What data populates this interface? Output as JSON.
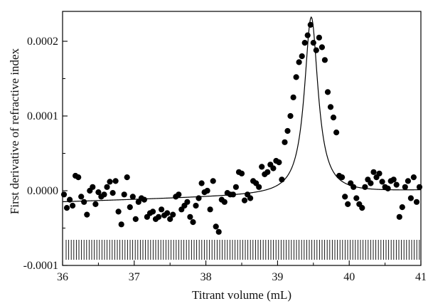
{
  "chart_data": {
    "type": "scatter",
    "title": "",
    "xlabel": "Titrant volume  (mL)",
    "ylabel": "First derivative of refractive index",
    "xlim": [
      36,
      41
    ],
    "ylim": [
      -0.0001,
      0.00024
    ],
    "xticks": [
      36,
      37,
      38,
      39,
      40,
      41
    ],
    "xtick_labels": [
      "36",
      "37",
      "38",
      "39",
      "40",
      "41"
    ],
    "yticks": [
      -0.0001,
      0.0,
      0.0001,
      0.0002
    ],
    "ytick_labels": [
      "-0.0001",
      "0.0000",
      "0.0001",
      "0.0002"
    ],
    "grid": false,
    "legend": "none",
    "marker_color": "#000000",
    "line_color": "#000000",
    "series": [
      {
        "kind": "points",
        "x": [
          36.02,
          36.06,
          36.1,
          36.14,
          36.18,
          36.22,
          36.26,
          36.3,
          36.34,
          36.38,
          36.42,
          36.46,
          36.5,
          36.54,
          36.58,
          36.62,
          36.66,
          36.7,
          36.74,
          36.78,
          36.82,
          36.86,
          36.9,
          36.94,
          36.98,
          37.02,
          37.06,
          37.1,
          37.14,
          37.18,
          37.22,
          37.26,
          37.3,
          37.34,
          37.38,
          37.42,
          37.46,
          37.5,
          37.54,
          37.58,
          37.62,
          37.66,
          37.7,
          37.74,
          37.78,
          37.82,
          37.86,
          37.9,
          37.94,
          37.98,
          38.02,
          38.06,
          38.1,
          38.14,
          38.18,
          38.22,
          38.26,
          38.3,
          38.34,
          38.38,
          38.42,
          38.46,
          38.5,
          38.54,
          38.58,
          38.62,
          38.66,
          38.7,
          38.74,
          38.78,
          38.82,
          38.86,
          38.9,
          38.94,
          38.98,
          39.02,
          39.06,
          39.1,
          39.14,
          39.18,
          39.22,
          39.26,
          39.3,
          39.34,
          39.38,
          39.42,
          39.46,
          39.5,
          39.54,
          39.58,
          39.62,
          39.66,
          39.7,
          39.74,
          39.78,
          39.82,
          39.86,
          39.9,
          39.94,
          39.98,
          40.02,
          40.06,
          40.1,
          40.14,
          40.18,
          40.22,
          40.26,
          40.3,
          40.34,
          40.38,
          40.42,
          40.46,
          40.5,
          40.54,
          40.58,
          40.62,
          40.66,
          40.7,
          40.74,
          40.78,
          40.82,
          40.86,
          40.9,
          40.94,
          40.98
        ],
        "y": [
          -5e-06,
          -2.3e-05,
          -1.2e-05,
          -2e-05,
          2e-05,
          1.8e-05,
          -8e-06,
          -1.5e-05,
          -3.2e-05,
          0.0,
          5e-06,
          -1.8e-05,
          -2e-06,
          -8e-06,
          -5e-06,
          5e-06,
          1.2e-05,
          -3e-06,
          1.3e-05,
          -2.8e-05,
          -4.5e-05,
          -5e-06,
          1.8e-05,
          -2.2e-05,
          -8e-06,
          -3.8e-05,
          -1.5e-05,
          -1e-05,
          -1.2e-05,
          -3.5e-05,
          -3e-05,
          -2.8e-05,
          -3.8e-05,
          -3.5e-05,
          -2.5e-05,
          -3.3e-05,
          -3e-05,
          -3.8e-05,
          -3.2e-05,
          -8e-06,
          -5e-06,
          -2.5e-05,
          -2e-05,
          -1.5e-05,
          -3.5e-05,
          -4.2e-05,
          -2e-05,
          -1e-05,
          1e-05,
          -2e-06,
          0.0,
          -2.5e-05,
          1.3e-05,
          -4.8e-05,
          -5.5e-05,
          -1.2e-05,
          -1.5e-05,
          -3e-06,
          -5e-06,
          -5e-06,
          5e-06,
          2.5e-05,
          2.3e-05,
          -1.3e-05,
          -5e-06,
          -1e-05,
          1.3e-05,
          1e-05,
          5e-06,
          3.2e-05,
          2.2e-05,
          2.5e-05,
          3.5e-05,
          3e-05,
          4e-05,
          3.8e-05,
          1.5e-05,
          6.5e-05,
          8e-05,
          0.0001,
          0.000125,
          0.000152,
          0.000172,
          0.00018,
          0.000198,
          0.000208,
          0.000222,
          0.000198,
          0.000188,
          0.000205,
          0.000192,
          0.000175,
          0.000132,
          0.000112,
          9.8e-05,
          7.8e-05,
          2e-05,
          1.8e-05,
          -8e-06,
          -1.8e-05,
          1e-05,
          5e-06,
          -1e-05,
          -1.8e-05,
          -2.3e-05,
          5e-06,
          1.5e-05,
          1e-05,
          2.5e-05,
          1.8e-05,
          2.3e-05,
          1.2e-05,
          5e-06,
          3e-06,
          1.3e-05,
          1.5e-05,
          8e-06,
          -3.5e-05,
          -2.2e-05,
          5e-06,
          1.3e-05,
          -1e-05,
          1.8e-05,
          -1.5e-05,
          5e-06
        ]
      },
      {
        "kind": "fit-line",
        "baseline": -1.5e-05,
        "baseline_slope": 3e-06,
        "peak_x": 39.47,
        "peak_height": 0.000237,
        "half_width": 0.115
      }
    ]
  }
}
